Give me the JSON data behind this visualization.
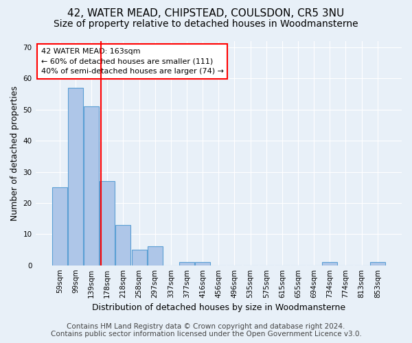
{
  "title_line1": "42, WATER MEAD, CHIPSTEAD, COULSDON, CR5 3NU",
  "title_line2": "Size of property relative to detached houses in Woodmansterne",
  "xlabel": "Distribution of detached houses by size in Woodmansterne",
  "ylabel": "Number of detached properties",
  "bins": [
    "59sqm",
    "99sqm",
    "139sqm",
    "178sqm",
    "218sqm",
    "258sqm",
    "297sqm",
    "337sqm",
    "377sqm",
    "416sqm",
    "456sqm",
    "496sqm",
    "535sqm",
    "575sqm",
    "615sqm",
    "655sqm",
    "694sqm",
    "734sqm",
    "774sqm",
    "813sqm",
    "853sqm"
  ],
  "values": [
    25,
    57,
    51,
    27,
    13,
    5,
    6,
    0,
    1,
    1,
    0,
    0,
    0,
    0,
    0,
    0,
    0,
    1,
    0,
    0,
    1
  ],
  "bar_color": "#aec6e8",
  "bar_edge_color": "#5a9fd4",
  "vline_color": "red",
  "vline_pos": 2.62,
  "annotation_text": "42 WATER MEAD: 163sqm\n← 60% of detached houses are smaller (111)\n40% of semi-detached houses are larger (74) →",
  "annotation_box_color": "white",
  "annotation_box_edge": "red",
  "ylim": [
    0,
    72
  ],
  "yticks": [
    0,
    10,
    20,
    30,
    40,
    50,
    60,
    70
  ],
  "footer_line1": "Contains HM Land Registry data © Crown copyright and database right 2024.",
  "footer_line2": "Contains public sector information licensed under the Open Government Licence v3.0.",
  "bg_color": "#e8f0f8",
  "plot_bg_color": "#e8f0f8",
  "title_fontsize": 11,
  "subtitle_fontsize": 10,
  "axis_fontsize": 9,
  "tick_fontsize": 7.5,
  "annotation_fontsize": 8,
  "footer_fontsize": 7.5
}
